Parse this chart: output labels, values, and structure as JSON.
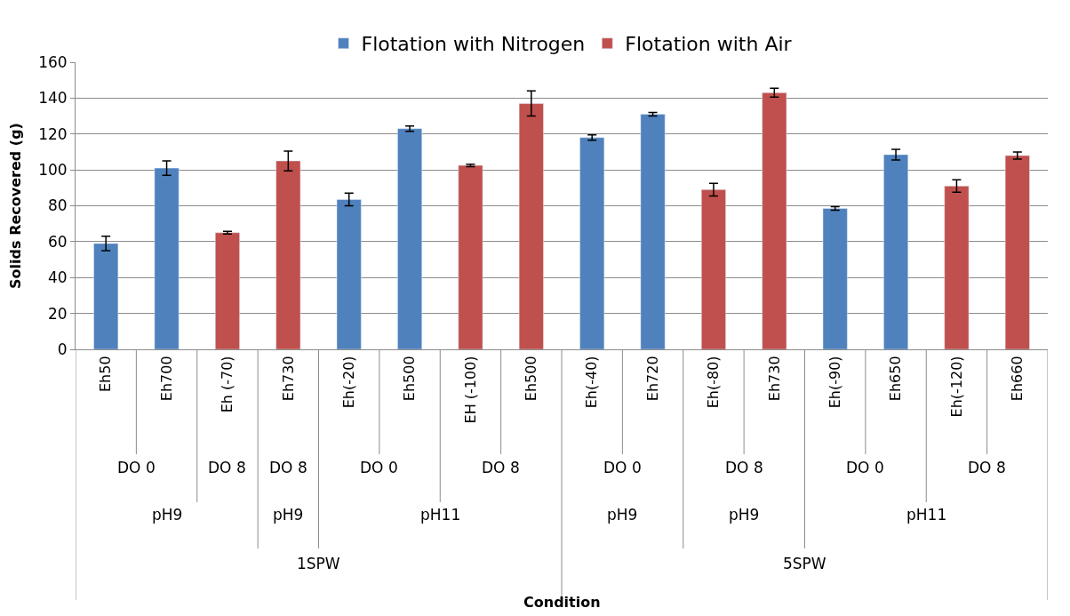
{
  "chart_data": {
    "type": "bar",
    "categories": [
      "Eh50",
      "Eh700",
      "Eh (-70)",
      "Eh730",
      "Eh(-20)",
      "Eh500",
      "EH (-100)",
      "Eh500",
      "Eh(-40)",
      "Eh720",
      "Eh(-80)",
      "Eh730",
      "Eh(-90)",
      "Eh650",
      "Eh(-120)",
      "Eh660"
    ],
    "series": [
      {
        "name": "Flotation with Nitrogen",
        "color": "#4f81bd",
        "values": [
          59,
          101,
          null,
          null,
          83.5,
          123,
          null,
          null,
          118,
          131,
          null,
          null,
          78.5,
          108.5,
          null,
          null
        ],
        "errors": [
          4,
          4,
          null,
          null,
          3.5,
          1.5,
          null,
          null,
          1.5,
          1,
          null,
          null,
          1,
          3,
          null,
          null
        ]
      },
      {
        "name": "Flotation with Air",
        "color": "#c0504d",
        "values": [
          null,
          null,
          65,
          105,
          null,
          null,
          102.5,
          137,
          null,
          null,
          89,
          143,
          null,
          null,
          91,
          108
        ],
        "errors": [
          null,
          null,
          0.7,
          5.5,
          null,
          null,
          0.7,
          7,
          null,
          null,
          3.5,
          2.5,
          null,
          null,
          3.5,
          2
        ]
      }
    ],
    "ylabel": "Solids Recovered (g)",
    "annotations": [
      "DO 0",
      "DO 8",
      "DO 8",
      "DO 0",
      "DO 8",
      "DO 0",
      "DO 8",
      "DO 0",
      "DO 8",
      "pH9",
      "pH9",
      "pH11",
      "pH9",
      "pH9",
      "pH11",
      "1SPW",
      "5SPW",
      "Condition"
    ],
    "ylim": [
      0,
      160
    ],
    "yticks": [
      0,
      20,
      40,
      60,
      80,
      100,
      120,
      140,
      160
    ],
    "grid": "y",
    "legend": "top"
  }
}
